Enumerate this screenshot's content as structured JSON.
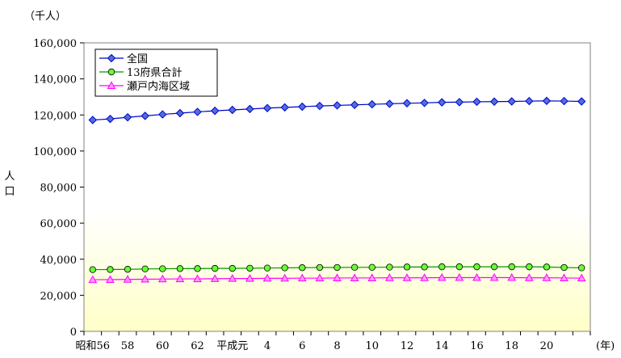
{
  "chart_data": {
    "type": "line",
    "unit_label": "（千人）",
    "ylabel": "人口",
    "xunit_label": "(年)",
    "ylim": [
      0,
      160000
    ],
    "yticks": [
      0,
      20000,
      40000,
      60000,
      80000,
      100000,
      120000,
      140000,
      160000
    ],
    "ytick_labels": [
      "0",
      "20,000",
      "40,000",
      "60,000",
      "80,000",
      "100,000",
      "120,000",
      "140,000",
      "160,000"
    ],
    "x": [
      "昭和56",
      "57",
      "58",
      "59",
      "60",
      "61",
      "62",
      "63",
      "平成元",
      "2",
      "3",
      "4",
      "5",
      "6",
      "7",
      "8",
      "9",
      "10",
      "11",
      "12",
      "13",
      "14",
      "15",
      "16",
      "17",
      "18",
      "19",
      "20",
      "21"
    ],
    "xtick_labels": [
      "昭和56",
      "58",
      "60",
      "62",
      "平成元",
      "4",
      "6",
      "8",
      "10",
      "12",
      "14",
      "16",
      "18",
      "20"
    ],
    "xtick_index": [
      0,
      2,
      4,
      6,
      8,
      10,
      12,
      14,
      16,
      18,
      20,
      22,
      24,
      26
    ],
    "legend_position": "top-left",
    "grid": false,
    "series": [
      {
        "name": "全国",
        "color": "#0000cc",
        "marker": "diamond",
        "marker_fill": "#4f6fdd",
        "values": [
          117200,
          117800,
          118700,
          119500,
          120300,
          121000,
          121700,
          122300,
          122800,
          123300,
          123800,
          124200,
          124600,
          125000,
          125300,
          125600,
          125900,
          126200,
          126500,
          126700,
          127000,
          127100,
          127300,
          127400,
          127500,
          127700,
          127800,
          127700,
          127500
        ]
      },
      {
        "name": "13府県合計",
        "color": "#009900",
        "marker": "circle",
        "marker_fill": "#66ff33",
        "values": [
          34200,
          34300,
          34400,
          34600,
          34700,
          34800,
          34800,
          34900,
          34900,
          35000,
          35100,
          35200,
          35300,
          35400,
          35400,
          35500,
          35500,
          35600,
          35700,
          35700,
          35800,
          35800,
          35800,
          35800,
          35800,
          35800,
          35700,
          35400,
          35200
        ]
      },
      {
        "name": "瀬戸内海区域",
        "color": "#ff00ff",
        "marker": "triangle",
        "marker_fill": "#ff99ff",
        "values": [
          28600,
          28700,
          28800,
          28900,
          29000,
          29100,
          29100,
          29200,
          29300,
          29300,
          29400,
          29400,
          29500,
          29500,
          29600,
          29600,
          29600,
          29700,
          29700,
          29700,
          29800,
          29800,
          29800,
          29800,
          29800,
          29700,
          29700,
          29600,
          29500
        ]
      }
    ]
  }
}
